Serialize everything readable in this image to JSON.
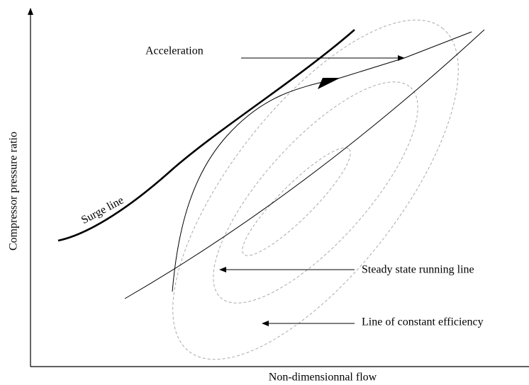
{
  "diagram": {
    "y_axis_label": "Compressor pressure ratio",
    "x_axis_label": "Non-dimensionnal flow",
    "annotations": {
      "acceleration": "Acceleration",
      "surge_line": "Surge line",
      "running_line": "Steady state running line",
      "efficiency": "Line of constant efficiency"
    }
  }
}
